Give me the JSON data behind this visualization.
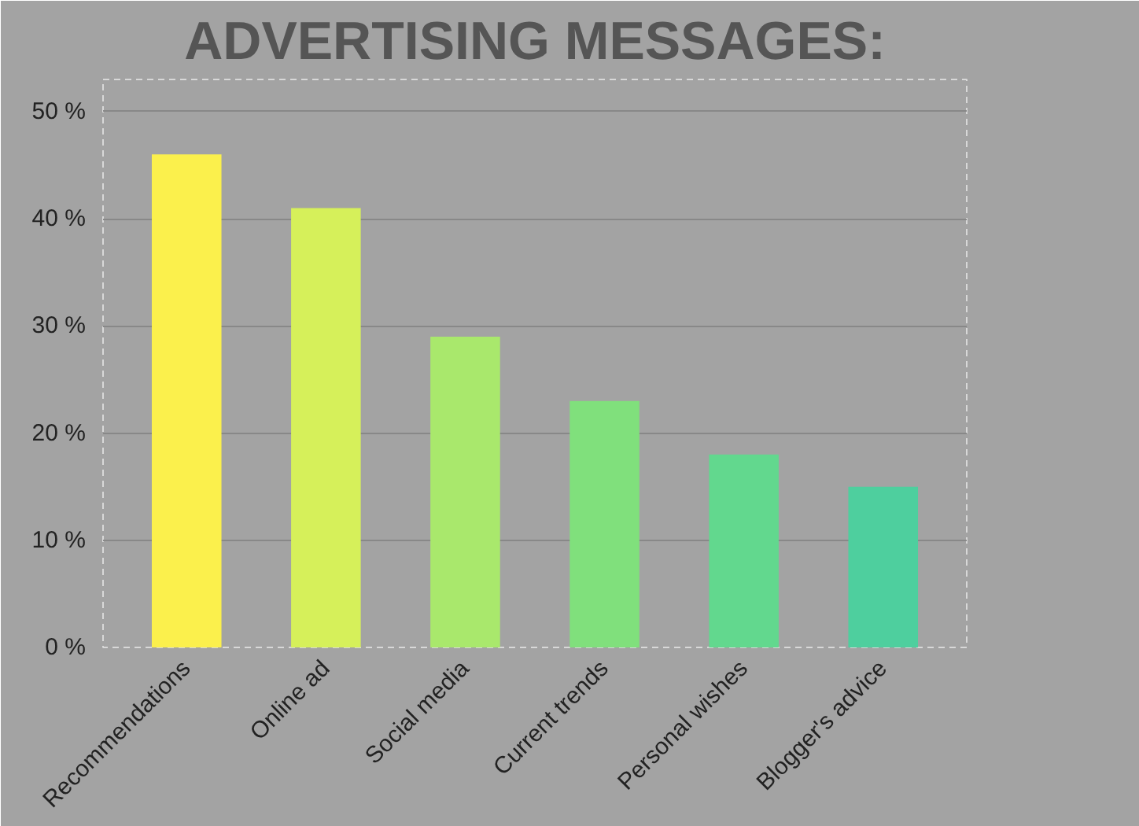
{
  "chart_data": {
    "type": "bar",
    "title": "ADVERTISING MESSAGES:",
    "categories": [
      "Recommendations",
      "Online ad",
      "Social media",
      "Current trends",
      "Personal wishes",
      "Blogger's advice"
    ],
    "values": [
      46,
      41,
      29,
      23,
      18,
      15
    ],
    "colors": [
      "#fbf04c",
      "#d6f05a",
      "#a9e86c",
      "#80e07c",
      "#62d88e",
      "#4ecf9e"
    ],
    "ylim": [
      0,
      50
    ],
    "yticks": [
      {
        "value": 0,
        "label": "0 %"
      },
      {
        "value": 10,
        "label": "10 %"
      },
      {
        "value": 20,
        "label": "20 %"
      },
      {
        "value": 30,
        "label": "30 %"
      },
      {
        "value": 40,
        "label": "40 %"
      },
      {
        "value": 50,
        "label": "50 %"
      }
    ],
    "grid": "y"
  }
}
